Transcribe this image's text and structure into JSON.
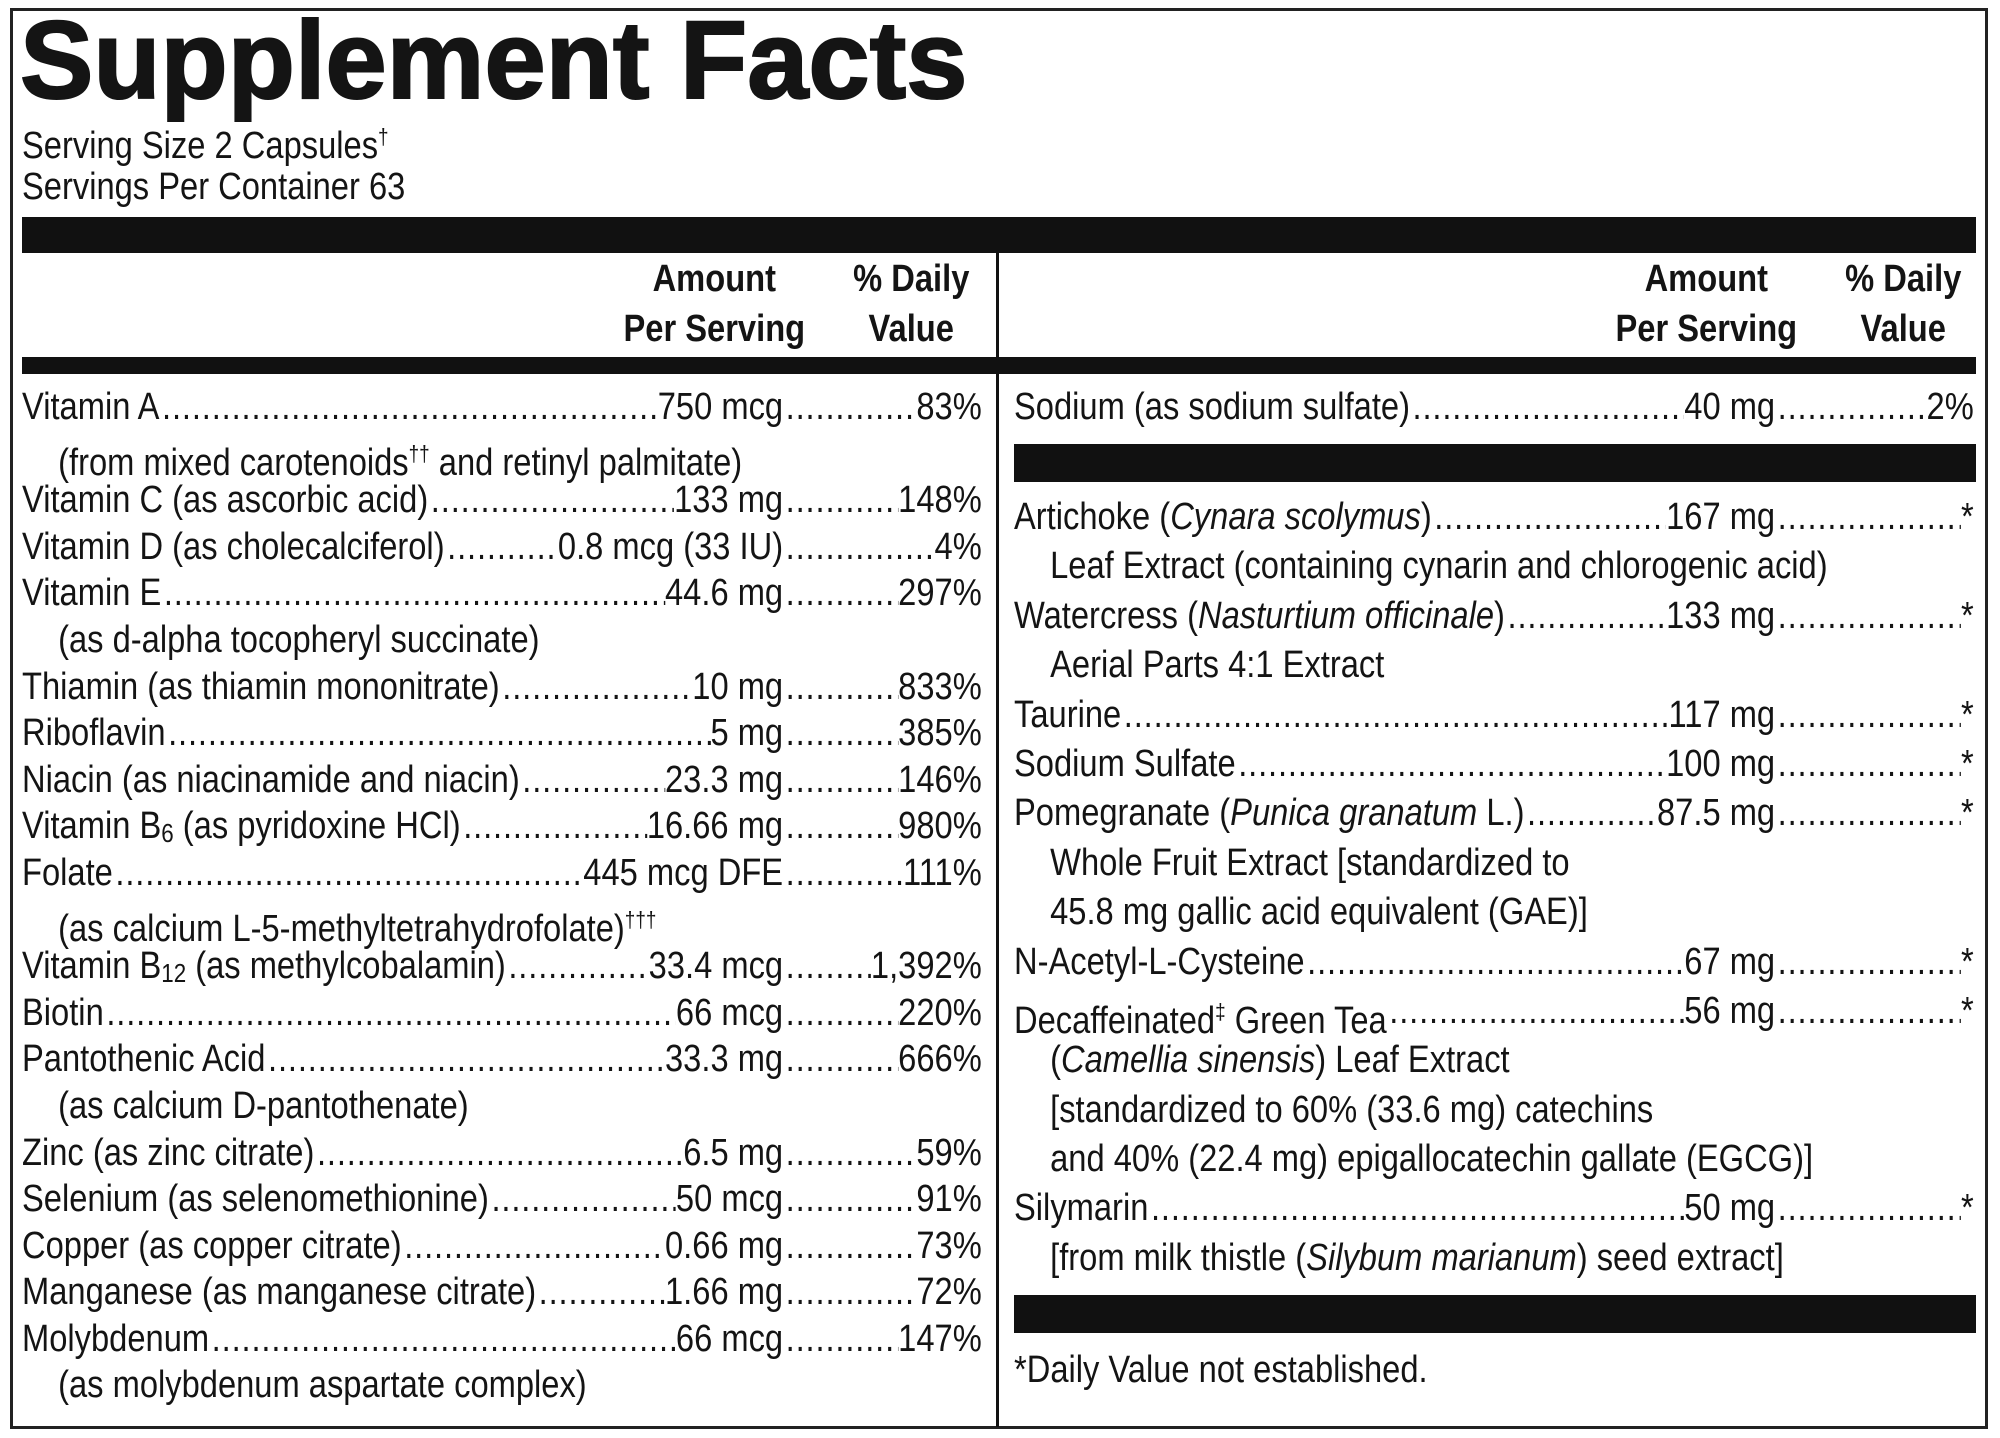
{
  "title": "Supplement Facts",
  "serving_size": [
    "Serving Size 2 Capsules",
    {
      "text": "†",
      "style": "sup"
    }
  ],
  "servings_per_container": "Servings Per Container 63",
  "left": {
    "amount_header": [
      "Amount",
      "Per Serving"
    ],
    "dv_header": [
      "% Daily",
      "Value"
    ],
    "rows": [
      {
        "name": [
          "Vitamin A"
        ],
        "amount": "750 mcg",
        "dv": "83%",
        "sub": [
          [
            "(from mixed carotenoids",
            {
              "text": "††",
              "style": "sup"
            },
            " and retinyl palmitate)"
          ]
        ]
      },
      {
        "name": [
          "Vitamin C (as ascorbic acid)"
        ],
        "amount": "133 mg",
        "dv": "148%"
      },
      {
        "name": [
          "Vitamin D (as cholecalciferol)"
        ],
        "amount": "0.8 mcg (33 IU)",
        "dv": "4%"
      },
      {
        "name": [
          "Vitamin E"
        ],
        "amount": "44.6 mg",
        "dv": "297%",
        "sub": [
          [
            "(as d-alpha tocopheryl succinate)"
          ]
        ]
      },
      {
        "name": [
          "Thiamin (as thiamin mononitrate)"
        ],
        "amount": "10 mg",
        "dv": "833%"
      },
      {
        "name": [
          "Riboflavin"
        ],
        "amount": "5 mg",
        "dv": "385%"
      },
      {
        "name": [
          "Niacin (as niacinamide and niacin)"
        ],
        "amount": "23.3 mg",
        "dv": "146%"
      },
      {
        "name": [
          "Vitamin B",
          {
            "text": "6",
            "style": "sub"
          },
          " (as pyridoxine HCl)"
        ],
        "amount": "16.66 mg",
        "dv": "980%"
      },
      {
        "name": [
          "Folate"
        ],
        "amount": "445 mcg DFE",
        "dv": "111%",
        "sub": [
          [
            "(as calcium L-5-methyltetrahydrofolate)",
            {
              "text": "†††",
              "style": "sup"
            }
          ]
        ]
      },
      {
        "name": [
          "Vitamin B",
          {
            "text": "12",
            "style": "sub"
          },
          " (as methylcobalamin)"
        ],
        "amount": "33.4 mcg",
        "dv": "1,392%"
      },
      {
        "name": [
          "Biotin"
        ],
        "amount": "66 mcg",
        "dv": "220%"
      },
      {
        "name": [
          "Pantothenic Acid"
        ],
        "amount": "33.3 mg",
        "dv": "666%",
        "sub": [
          [
            "(as calcium D-pantothenate)"
          ]
        ]
      },
      {
        "name": [
          "Zinc (as zinc citrate)"
        ],
        "amount": "6.5 mg",
        "dv": "59%"
      },
      {
        "name": [
          "Selenium (as selenomethionine)"
        ],
        "amount": "50 mcg",
        "dv": "91%"
      },
      {
        "name": [
          "Copper (as copper citrate)"
        ],
        "amount": "0.66 mg",
        "dv": "73%"
      },
      {
        "name": [
          "Manganese (as manganese citrate)"
        ],
        "amount": "1.66 mg",
        "dv": "72%"
      },
      {
        "name": [
          "Molybdenum"
        ],
        "amount": "66 mcg",
        "dv": "147%",
        "sub": [
          [
            "(as molybdenum aspartate complex)"
          ]
        ]
      }
    ]
  },
  "right": {
    "amount_header": [
      "Amount",
      "Per Serving"
    ],
    "dv_header": [
      "% Daily",
      "Value"
    ],
    "rows": [
      {
        "name": [
          "Sodium (as sodium sulfate)"
        ],
        "amount": "40 mg",
        "dv": "2%"
      }
    ],
    "blend_rows": [
      {
        "name": [
          "Artichoke (",
          {
            "text": "Cynara scolymus",
            "style": "italic"
          },
          ")"
        ],
        "amount": "167 mg",
        "dv": "*",
        "sub": [
          [
            "Leaf Extract (containing cynarin and chlorogenic acid)"
          ]
        ]
      },
      {
        "name": [
          "Watercress (",
          {
            "text": "Nasturtium officinale",
            "style": "italic"
          },
          ")"
        ],
        "amount": "133 mg",
        "dv": "*",
        "sub": [
          [
            "Aerial Parts 4:1 Extract"
          ]
        ]
      },
      {
        "name": [
          "Taurine"
        ],
        "amount": "117 mg",
        "dv": "*"
      },
      {
        "name": [
          "Sodium Sulfate"
        ],
        "amount": "100 mg",
        "dv": "*"
      },
      {
        "name": [
          "Pomegranate (",
          {
            "text": "Punica granatum",
            "style": "italic"
          },
          " L.)"
        ],
        "amount": "87.5 mg",
        "dv": "*",
        "sub": [
          [
            "Whole Fruit Extract [standardized to"
          ],
          [
            "45.8 mg gallic acid equivalent (GAE)]"
          ]
        ]
      },
      {
        "name": [
          "N-Acetyl-L-Cysteine"
        ],
        "amount": "67 mg",
        "dv": "*"
      },
      {
        "name": [
          "Decaffeinated",
          {
            "text": "‡",
            "style": "sup"
          },
          " Green Tea"
        ],
        "amount": "56 mg",
        "dv": "*",
        "sub": [
          [
            "(",
            {
              "text": "Camellia sinensis",
              "style": "italic"
            },
            ") Leaf Extract"
          ],
          [
            "[standardized to 60% (33.6 mg) catechins"
          ],
          [
            "and 40% (22.4 mg) epigallocatechin gallate (EGCG)]"
          ]
        ]
      },
      {
        "name": [
          "Silymarin"
        ],
        "amount": "50 mg",
        "dv": "*",
        "sub": [
          [
            "[from milk thistle (",
            {
              "text": "Silybum marianum",
              "style": "italic"
            },
            ") seed extract]"
          ]
        ]
      }
    ],
    "footnote": "*Daily Value not established."
  }
}
